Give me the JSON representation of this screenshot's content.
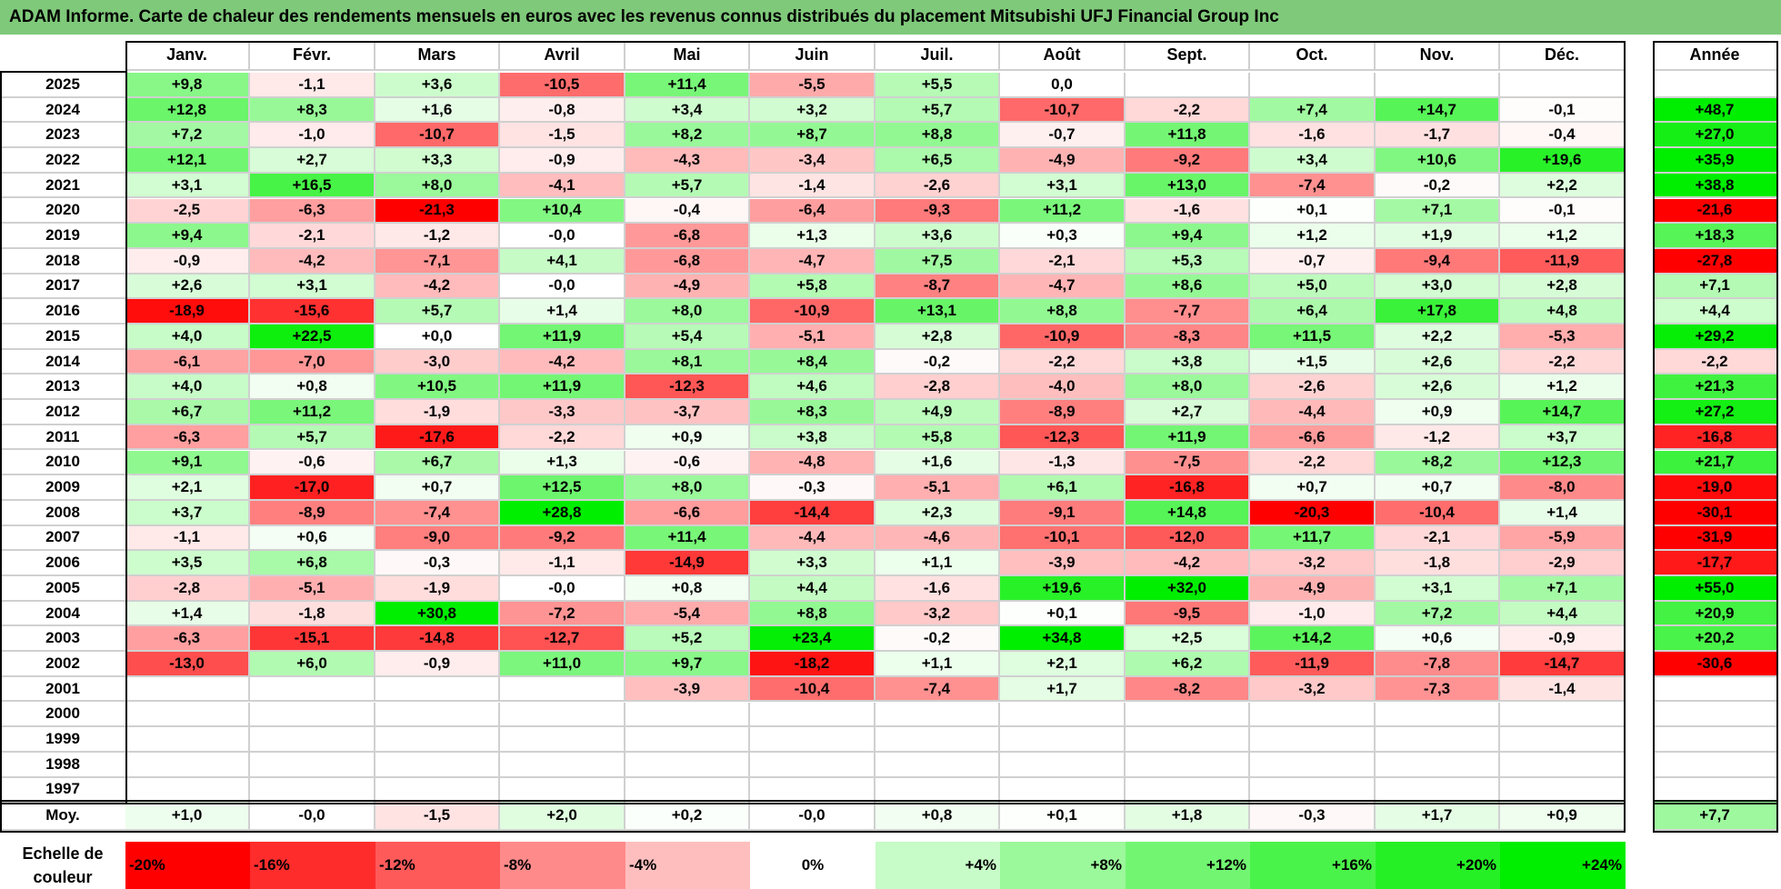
{
  "title": "ADAM Informe. Carte de chaleur des rendements mensuels en euros avec les revenus connus distribués du placement Mitsubishi UFJ Financial Group Inc",
  "chart_data": {
    "type": "heatmap",
    "months": [
      "Janv.",
      "Févr.",
      "Mars",
      "Avril",
      "Mai",
      "Juin",
      "Juil.",
      "Août",
      "Sept.",
      "Oct.",
      "Nov.",
      "Déc."
    ],
    "year_header": "Année",
    "rows": [
      {
        "year": "2025",
        "values": [
          "+9,8",
          "-1,1",
          "+3,6",
          "-10,5",
          "+11,4",
          "-5,5",
          "+5,5",
          "0,0",
          "",
          "",
          "",
          ""
        ],
        "annual": ""
      },
      {
        "year": "2024",
        "values": [
          "+12,8",
          "+8,3",
          "+1,6",
          "-0,8",
          "+3,4",
          "+3,2",
          "+5,7",
          "-10,7",
          "-2,2",
          "+7,4",
          "+14,7",
          "-0,1"
        ],
        "annual": "+48,7"
      },
      {
        "year": "2023",
        "values": [
          "+7,2",
          "-1,0",
          "-10,7",
          "-1,5",
          "+8,2",
          "+8,7",
          "+8,8",
          "-0,7",
          "+11,8",
          "-1,6",
          "-1,7",
          "-0,4"
        ],
        "annual": "+27,0"
      },
      {
        "year": "2022",
        "values": [
          "+12,1",
          "+2,7",
          "+3,3",
          "-0,9",
          "-4,3",
          "-3,4",
          "+6,5",
          "-4,9",
          "-9,2",
          "+3,4",
          "+10,6",
          "+19,6"
        ],
        "annual": "+35,9"
      },
      {
        "year": "2021",
        "values": [
          "+3,1",
          "+16,5",
          "+8,0",
          "-4,1",
          "+5,7",
          "-1,4",
          "-2,6",
          "+3,1",
          "+13,0",
          "-7,4",
          "-0,2",
          "+2,2"
        ],
        "annual": "+38,8"
      },
      {
        "year": "2020",
        "values": [
          "-2,5",
          "-6,3",
          "-21,3",
          "+10,4",
          "-0,4",
          "-6,4",
          "-9,3",
          "+11,2",
          "-1,6",
          "+0,1",
          "+7,1",
          "-0,1"
        ],
        "annual": "-21,6"
      },
      {
        "year": "2019",
        "values": [
          "+9,4",
          "-2,1",
          "-1,2",
          "-0,0",
          "-6,8",
          "+1,3",
          "+3,6",
          "+0,3",
          "+9,4",
          "+1,2",
          "+1,9",
          "+1,2"
        ],
        "annual": "+18,3"
      },
      {
        "year": "2018",
        "values": [
          "-0,9",
          "-4,2",
          "-7,1",
          "+4,1",
          "-6,8",
          "-4,7",
          "+7,5",
          "-2,1",
          "+5,3",
          "-0,7",
          "-9,4",
          "-11,9"
        ],
        "annual": "-27,8"
      },
      {
        "year": "2017",
        "values": [
          "+2,6",
          "+3,1",
          "-4,2",
          "-0,0",
          "-4,9",
          "+5,8",
          "-8,7",
          "-4,7",
          "+8,6",
          "+5,0",
          "+3,0",
          "+2,8"
        ],
        "annual": "+7,1"
      },
      {
        "year": "2016",
        "values": [
          "-18,9",
          "-15,6",
          "+5,7",
          "+1,4",
          "+8,0",
          "-10,9",
          "+13,1",
          "+8,8",
          "-7,7",
          "+6,4",
          "+17,8",
          "+4,8"
        ],
        "annual": "+4,4"
      },
      {
        "year": "2015",
        "values": [
          "+4,0",
          "+22,5",
          "+0,0",
          "+11,9",
          "+5,4",
          "-5,1",
          "+2,8",
          "-10,9",
          "-8,3",
          "+11,5",
          "+2,2",
          "-5,3"
        ],
        "annual": "+29,2"
      },
      {
        "year": "2014",
        "values": [
          "-6,1",
          "-7,0",
          "-3,0",
          "-4,2",
          "+8,1",
          "+8,4",
          "-0,2",
          "-2,2",
          "+3,8",
          "+1,5",
          "+2,6",
          "-2,2"
        ],
        "annual": "-2,2"
      },
      {
        "year": "2013",
        "values": [
          "+4,0",
          "+0,8",
          "+10,5",
          "+11,9",
          "-12,3",
          "+4,6",
          "-2,8",
          "-4,0",
          "+8,0",
          "-2,6",
          "+2,6",
          "+1,2"
        ],
        "annual": "+21,3"
      },
      {
        "year": "2012",
        "values": [
          "+6,7",
          "+11,2",
          "-1,9",
          "-3,3",
          "-3,7",
          "+8,3",
          "+4,9",
          "-8,9",
          "+2,7",
          "-4,4",
          "+0,9",
          "+14,7"
        ],
        "annual": "+27,2"
      },
      {
        "year": "2011",
        "values": [
          "-6,3",
          "+5,7",
          "-17,6",
          "-2,2",
          "+0,9",
          "+3,8",
          "+5,8",
          "-12,3",
          "+11,9",
          "-6,6",
          "-1,2",
          "+3,7"
        ],
        "annual": "-16,8"
      },
      {
        "year": "2010",
        "values": [
          "+9,1",
          "-0,6",
          "+6,7",
          "+1,3",
          "-0,6",
          "-4,8",
          "+1,6",
          "-1,3",
          "-7,5",
          "-2,2",
          "+8,2",
          "+12,3"
        ],
        "annual": "+21,7"
      },
      {
        "year": "2009",
        "values": [
          "+2,1",
          "-17,0",
          "+0,7",
          "+12,5",
          "+8,0",
          "-0,3",
          "-5,1",
          "+6,1",
          "-16,8",
          "+0,7",
          "+0,7",
          "-8,0"
        ],
        "annual": "-19,0"
      },
      {
        "year": "2008",
        "values": [
          "+3,7",
          "-8,9",
          "-7,4",
          "+28,8",
          "-6,6",
          "-14,4",
          "+2,3",
          "-9,1",
          "+14,8",
          "-20,3",
          "-10,4",
          "+1,4"
        ],
        "annual": "-30,1"
      },
      {
        "year": "2007",
        "values": [
          "-1,1",
          "+0,6",
          "-9,0",
          "-9,2",
          "+11,4",
          "-4,4",
          "-4,6",
          "-10,1",
          "-12,0",
          "+11,7",
          "-2,1",
          "-5,9"
        ],
        "annual": "-31,9"
      },
      {
        "year": "2006",
        "values": [
          "+3,5",
          "+6,8",
          "-0,3",
          "-1,1",
          "-14,9",
          "+3,3",
          "+1,1",
          "-3,9",
          "-4,2",
          "-3,2",
          "-1,8",
          "-2,9"
        ],
        "annual": "-17,7"
      },
      {
        "year": "2005",
        "values": [
          "-2,8",
          "-5,1",
          "-1,9",
          "-0,0",
          "+0,8",
          "+4,4",
          "-1,6",
          "+19,6",
          "+32,0",
          "-4,9",
          "+3,1",
          "+7,1"
        ],
        "annual": "+55,0"
      },
      {
        "year": "2004",
        "values": [
          "+1,4",
          "-1,8",
          "+30,8",
          "-7,2",
          "-5,4",
          "+8,8",
          "-3,2",
          "+0,1",
          "-9,5",
          "-1,0",
          "+7,2",
          "+4,4"
        ],
        "annual": "+20,9"
      },
      {
        "year": "2003",
        "values": [
          "-6,3",
          "-15,1",
          "-14,8",
          "-12,7",
          "+5,2",
          "+23,4",
          "-0,2",
          "+34,8",
          "+2,5",
          "+14,2",
          "+0,6",
          "-0,9"
        ],
        "annual": "+20,2"
      },
      {
        "year": "2002",
        "values": [
          "-13,0",
          "+6,0",
          "-0,9",
          "+11,0",
          "+9,7",
          "-18,2",
          "+1,1",
          "+2,1",
          "+6,2",
          "-11,9",
          "-7,8",
          "-14,7"
        ],
        "annual": "-30,6"
      },
      {
        "year": "2001",
        "values": [
          "",
          "",
          "",
          "",
          "-3,9",
          "-10,4",
          "-7,4",
          "+1,7",
          "-8,2",
          "-3,2",
          "-7,3",
          "-1,4"
        ],
        "annual": ""
      },
      {
        "year": "2000",
        "values": [
          "",
          "",
          "",
          "",
          "",
          "",
          "",
          "",
          "",
          "",
          "",
          ""
        ],
        "annual": ""
      },
      {
        "year": "1999",
        "values": [
          "",
          "",
          "",
          "",
          "",
          "",
          "",
          "",
          "",
          "",
          "",
          ""
        ],
        "annual": ""
      },
      {
        "year": "1998",
        "values": [
          "",
          "",
          "",
          "",
          "",
          "",
          "",
          "",
          "",
          "",
          "",
          ""
        ],
        "annual": ""
      },
      {
        "year": "1997",
        "values": [
          "",
          "",
          "",
          "",
          "",
          "",
          "",
          "",
          "",
          "",
          "",
          ""
        ],
        "annual": ""
      }
    ],
    "average": {
      "label": "Moy.",
      "values": [
        "+1,0",
        "-0,0",
        "-1,5",
        "+2,0",
        "+0,2",
        "-0,0",
        "+0,8",
        "+0,1",
        "+1,8",
        "-0,3",
        "+1,7",
        "+0,9"
      ],
      "annual": "+7,7"
    },
    "scale": {
      "label": "Echelle de couleur",
      "steps": [
        "-20%",
        "-16%",
        "-12%",
        "-8%",
        "-4%",
        "0%",
        "+4%",
        "+8%",
        "+12%",
        "+16%",
        "+20%",
        "+24%"
      ],
      "step_values": [
        -20,
        -16,
        -12,
        -8,
        -4,
        0,
        4,
        8,
        12,
        16,
        20,
        24
      ]
    },
    "colors": {
      "negative": "#ff0000",
      "positive": "#00ee00",
      "neutral": "#ffffff",
      "title_bg": "#7fc97a"
    }
  }
}
